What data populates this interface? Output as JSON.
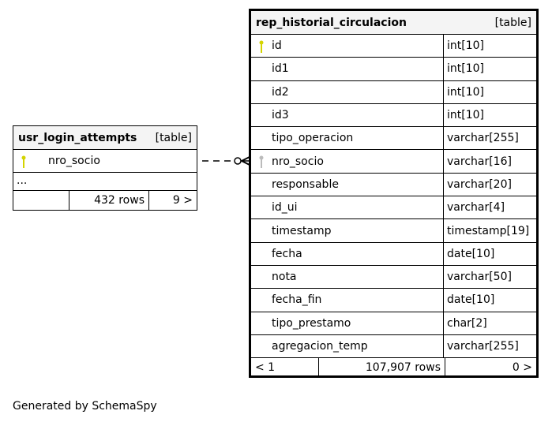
{
  "left_table": {
    "name": "usr_login_attempts",
    "type": "[table]",
    "columns": [
      {
        "name": "nro_socio",
        "key": "primary"
      }
    ],
    "ellipsis": "...",
    "footer": {
      "rows": "432 rows",
      "next": "9 >"
    }
  },
  "main_table": {
    "name": "rep_historial_circulacion",
    "type": "[table]",
    "columns": [
      {
        "name": "id",
        "type": "int[10]",
        "key": "primary"
      },
      {
        "name": "id1",
        "type": "int[10]"
      },
      {
        "name": "id2",
        "type": "int[10]"
      },
      {
        "name": "id3",
        "type": "int[10]"
      },
      {
        "name": "tipo_operacion",
        "type": "varchar[255]"
      },
      {
        "name": "nro_socio",
        "type": "varchar[16]",
        "key": "foreign"
      },
      {
        "name": "responsable",
        "type": "varchar[20]"
      },
      {
        "name": "id_ui",
        "type": "varchar[4]"
      },
      {
        "name": "timestamp",
        "type": "timestamp[19]"
      },
      {
        "name": "fecha",
        "type": "date[10]"
      },
      {
        "name": "nota",
        "type": "varchar[50]"
      },
      {
        "name": "fecha_fin",
        "type": "date[10]"
      },
      {
        "name": "tipo_prestamo",
        "type": "char[2]"
      },
      {
        "name": "agregacion_temp",
        "type": "varchar[255]"
      }
    ],
    "footer": {
      "prev": "< 1",
      "rows": "107,907 rows",
      "next": "0 >"
    }
  },
  "colors": {
    "primary_key": "#d4d400",
    "foreign_key": "#bbbbbb",
    "header_bg": "#f4f4f4"
  },
  "generated_by": "Generated by SchemaSpy"
}
